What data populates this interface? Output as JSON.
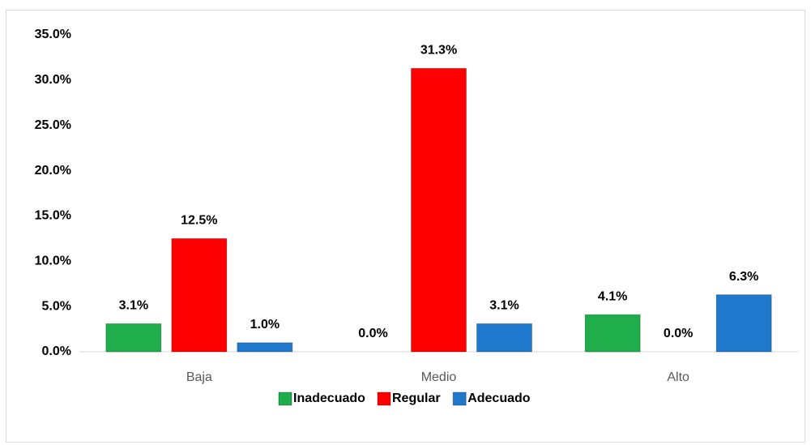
{
  "chart_data": {
    "type": "bar",
    "categories": [
      "Baja",
      "Medio",
      "Alto"
    ],
    "series": [
      {
        "name": "Inadecuado",
        "color": "#1fae4b",
        "values": [
          3.1,
          0.0,
          4.1
        ],
        "value_labels": [
          "3.1%",
          "0.0%",
          "4.1%"
        ]
      },
      {
        "name": "Regular",
        "color": "#ff0000",
        "values": [
          12.5,
          31.3,
          0.0
        ],
        "value_labels": [
          "12.5%",
          "31.3%",
          "0.0%"
        ]
      },
      {
        "name": "Adecuado",
        "color": "#1e78cc",
        "values": [
          1.0,
          3.1,
          6.3
        ],
        "value_labels": [
          "1.0%",
          "3.1%",
          "6.3%"
        ]
      }
    ],
    "ylim": [
      0,
      35
    ],
    "yticks": [
      {
        "value": 0,
        "label": "0.0%"
      },
      {
        "value": 5,
        "label": "5.0%"
      },
      {
        "value": 10,
        "label": "10.0%"
      },
      {
        "value": 15,
        "label": "15.0%"
      },
      {
        "value": 20,
        "label": "20.0%"
      },
      {
        "value": 25,
        "label": "25.0%"
      },
      {
        "value": 30,
        "label": "30.0%"
      },
      {
        "value": 35,
        "label": "35.0%"
      }
    ],
    "legend": "bottom"
  }
}
